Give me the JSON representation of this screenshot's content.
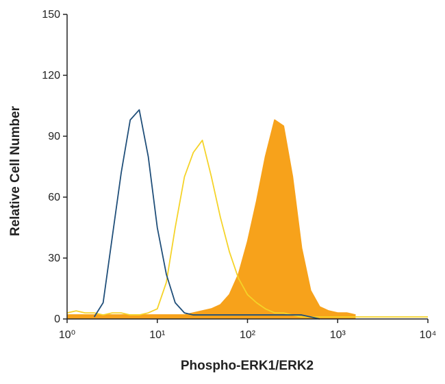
{
  "chart_data": {
    "type": "line",
    "xlabel": "Phospho-ERK1/ERK2",
    "ylabel": "Relative Cell Number",
    "xscale": "log",
    "xlim": [
      1,
      10000
    ],
    "ylim": [
      0,
      150
    ],
    "xticks": [
      {
        "value": 1,
        "label": "10⁰"
      },
      {
        "value": 10,
        "label": "10¹"
      },
      {
        "value": 100,
        "label": "10²"
      },
      {
        "value": 1000,
        "label": "10³"
      },
      {
        "value": 10000,
        "label": "10⁴"
      }
    ],
    "yticks": [
      0,
      30,
      60,
      90,
      120,
      150
    ],
    "x": [
      1,
      1.26,
      1.58,
      2,
      2.51,
      3.16,
      3.98,
      5.01,
      6.31,
      7.94,
      10,
      12.6,
      15.8,
      20,
      25.1,
      31.6,
      39.8,
      50.1,
      63.1,
      79.4,
      100,
      126,
      158,
      200,
      251,
      316,
      398,
      501,
      631,
      794,
      1000,
      1260,
      1580,
      2000,
      2510,
      3160,
      3980,
      5010,
      6310,
      7940,
      10000
    ],
    "series": [
      {
        "color": "#f7a21b",
        "fill": true,
        "values": [
          2,
          2,
          2,
          2,
          2,
          2,
          2,
          2,
          2,
          2,
          2,
          2,
          2,
          2,
          3,
          4,
          5,
          7,
          12,
          22,
          38,
          58,
          80,
          98,
          95,
          70,
          35,
          14,
          6,
          4,
          3,
          3,
          2,
          null,
          null,
          null,
          null,
          null,
          null,
          null,
          null
        ]
      },
      {
        "color": "#f5d328",
        "fill": false,
        "values": [
          3,
          4,
          3,
          3,
          2,
          3,
          3,
          2,
          2,
          3,
          5,
          18,
          45,
          70,
          82,
          88,
          70,
          50,
          33,
          20,
          12,
          8,
          5,
          3,
          3,
          2,
          1,
          1,
          1,
          1,
          1,
          1,
          1,
          1,
          1,
          1,
          1,
          1,
          1,
          1,
          1
        ]
      },
      {
        "color": "#1f4e79",
        "fill": false,
        "values": [
          null,
          null,
          null,
          1,
          8,
          40,
          72,
          98,
          103,
          80,
          45,
          22,
          8,
          3,
          2,
          2,
          2,
          2,
          2,
          2,
          2,
          2,
          2,
          2,
          2,
          2,
          2,
          1,
          0,
          null,
          null,
          null,
          null,
          null,
          null,
          null,
          null,
          null,
          null,
          null,
          null
        ]
      }
    ]
  }
}
